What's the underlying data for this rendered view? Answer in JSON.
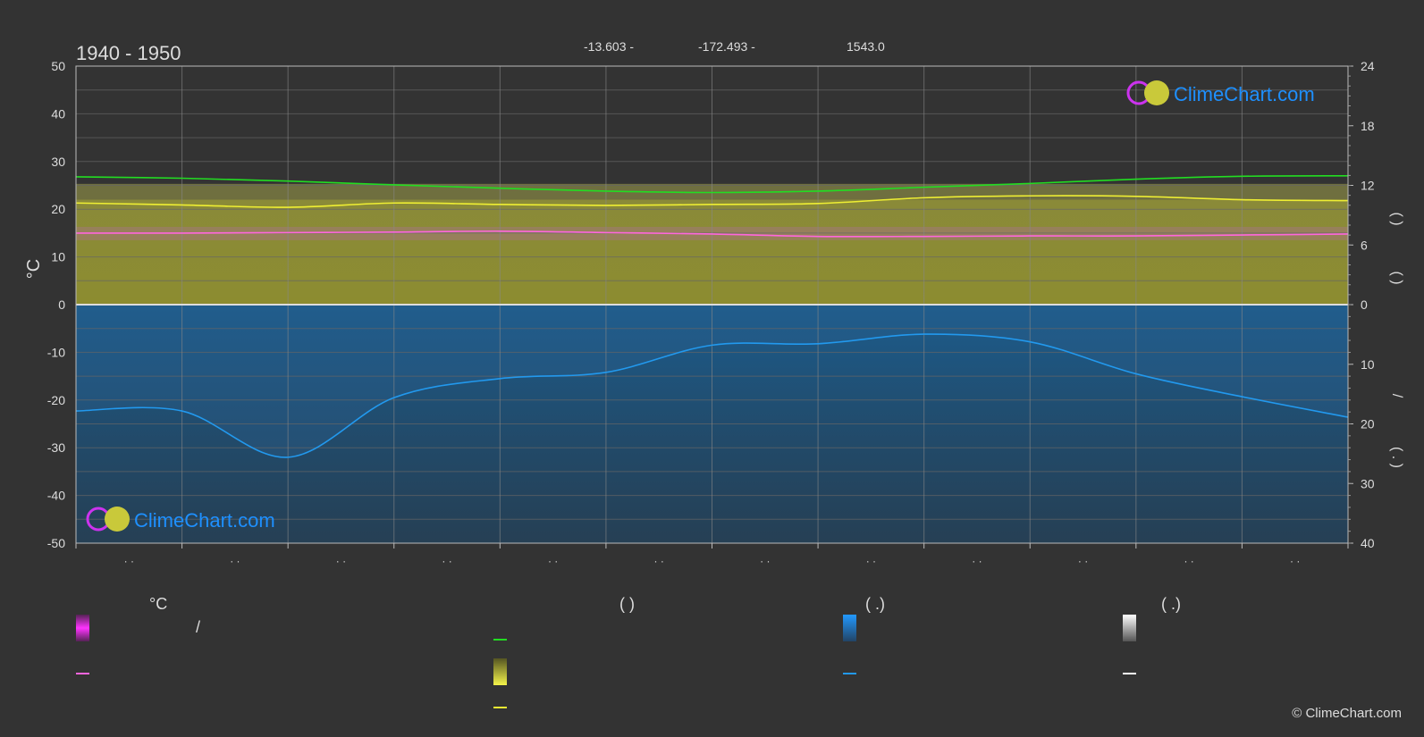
{
  "chart_data": {
    "type": "line",
    "title": "1940 - 1950",
    "subtitle_items": [
      "-13.603 -",
      "-172.493 -",
      "1543.0"
    ],
    "left_axis_label": "°C",
    "left_ylim": [
      -50,
      50
    ],
    "left_ticks": [
      "50",
      "40",
      "30",
      "20",
      "10",
      "0",
      "-10",
      "-20",
      "-30",
      "-40",
      "-50"
    ],
    "right_upper_ticks": [
      "24",
      "18",
      "12",
      "6",
      "0"
    ],
    "right_lower_ticks": [
      "10",
      "20",
      "30",
      "40"
    ],
    "right_upper_label": "(     )",
    "right_mid_label": "(     )",
    "right_lower_label_slash": "/",
    "right_lower_label": "(  .  )",
    "x_tick_labels": [
      "· ·",
      "· ·",
      "· ·",
      "· ·",
      "· ·",
      "· ·",
      "· ·",
      "· ·",
      "· ·",
      "· ·",
      "· ·",
      "· ·"
    ],
    "months": 12,
    "series": [
      {
        "key": "daylight",
        "color": "#22dd22",
        "values": [
          26.8,
          26.5,
          25.9,
          25.1,
          24.4,
          23.8,
          23.5,
          23.8,
          24.6,
          25.4,
          26.3,
          26.9,
          27.0
        ]
      },
      {
        "key": "sunshine",
        "color": "#eeee33",
        "values": [
          21.3,
          20.9,
          20.4,
          21.3,
          21.0,
          20.8,
          21.0,
          21.2,
          22.4,
          22.8,
          22.7,
          22.0,
          21.8
        ]
      },
      {
        "key": "temp_mean",
        "color": "#ff66dd",
        "values": [
          15.0,
          15.0,
          15.1,
          15.2,
          15.4,
          15.1,
          14.8,
          14.3,
          14.3,
          14.4,
          14.4,
          14.6,
          14.8
        ]
      },
      {
        "key": "precip_mean",
        "color": "#2299ee",
        "values": [
          -22.3,
          -22.3,
          -32.0,
          -19.5,
          -15.5,
          -14.2,
          -8.5,
          -8.2,
          -6.2,
          -7.8,
          -14.5,
          -19.3,
          -23.6
        ]
      }
    ],
    "sun_band_top": 25.3,
    "precip_band_color": "#1a5a8a"
  },
  "legend": {
    "col1_title": "°C",
    "col1_slash": "/",
    "col2_title": "(          )",
    "col3_title": "(    .)",
    "col4_title": "(    .)"
  },
  "brand": {
    "name": "ClimeChart.com",
    "copyright": "© ClimeChart.com"
  },
  "colors": {
    "background": "#333333",
    "grid": "#5e5e5e",
    "brand_blue": "#1e90ff"
  }
}
